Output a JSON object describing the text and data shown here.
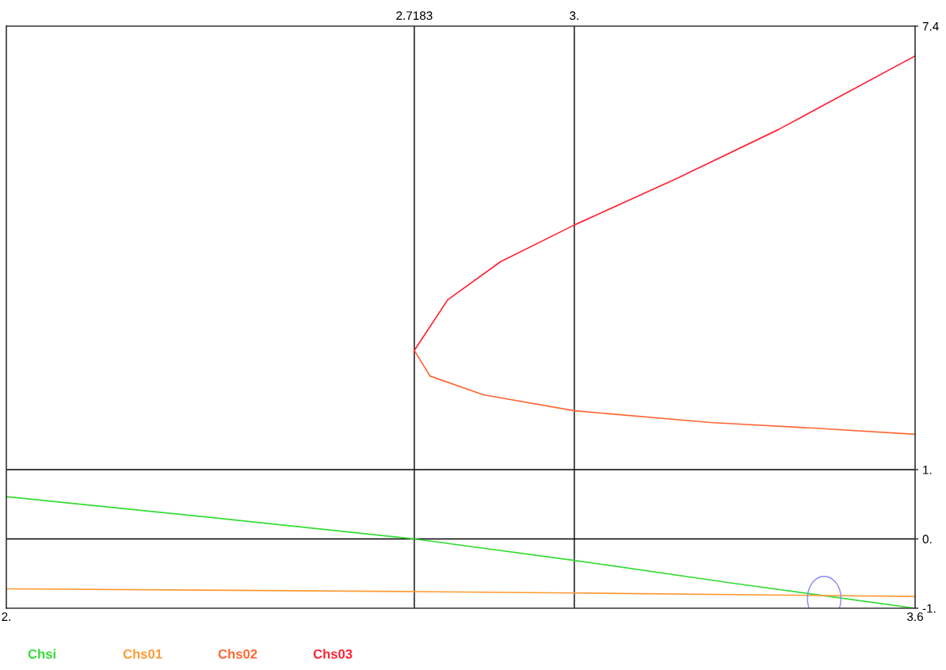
{
  "chart_data": {
    "type": "line",
    "xlim": [
      2,
      3.6
    ],
    "ylim": [
      -1,
      7.4
    ],
    "xticks": [
      {
        "value": 2,
        "label": "2."
      },
      {
        "value": 3.6,
        "label": "3.6"
      }
    ],
    "x2lim": [
      2,
      3.6
    ],
    "x2ticks": [
      {
        "value": 2.7183,
        "label": "2.7183"
      },
      {
        "value": 3,
        "label": "3."
      }
    ],
    "yticks": [
      {
        "value": -1,
        "label": "-1."
      },
      {
        "value": 0,
        "label": "0."
      },
      {
        "value": 1,
        "label": "1."
      },
      {
        "value": 7.4,
        "label": "7.4"
      }
    ],
    "ref_lines": [
      {
        "axis": "x",
        "value": 2.7183,
        "color": "#000000"
      },
      {
        "axis": "x",
        "value": 3,
        "color": "#000000"
      },
      {
        "axis": "y",
        "value": 0,
        "color": "#000000"
      },
      {
        "axis": "y",
        "value": 1,
        "color": "#000000"
      }
    ],
    "series": [
      {
        "name": "Chsi",
        "color": "#33dd33",
        "x": [
          2,
          2.36,
          2.7183,
          3.0,
          3.28,
          3.6
        ],
        "values": [
          0.61,
          0.31,
          0,
          -0.31,
          -0.64,
          -1
        ]
      },
      {
        "name": "Chs01",
        "color": "#ff9933",
        "x": [
          2,
          2.7183,
          3.0,
          3.6
        ],
        "values": [
          -0.72,
          -0.76,
          -0.78,
          -0.83
        ]
      },
      {
        "name": "Chs02",
        "color": "#ff6633",
        "x": [
          2.7183,
          2.746,
          2.84,
          3.0,
          3.24,
          3.42,
          3.6
        ],
        "values": [
          2.72,
          2.35,
          2.08,
          1.85,
          1.68,
          1.6,
          1.51
        ]
      },
      {
        "name": "Chs03",
        "color": "#ff2233",
        "x": [
          2.7183,
          2.777,
          2.87,
          3.0,
          3.18,
          3.36,
          3.6
        ],
        "values": [
          2.72,
          3.45,
          4.0,
          4.53,
          5.2,
          5.91,
          6.97
        ]
      }
    ],
    "grid": false,
    "marker": "none",
    "line_style": "solid"
  }
}
